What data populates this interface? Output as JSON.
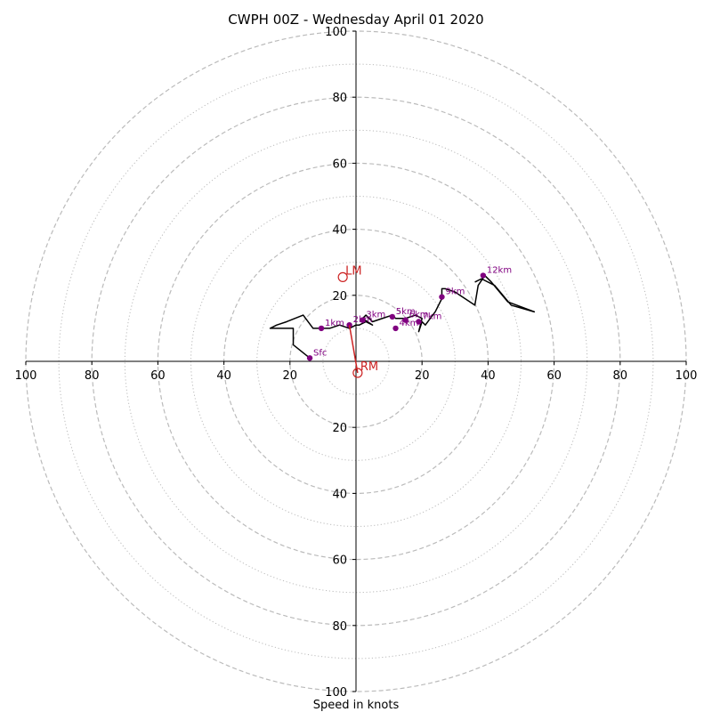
{
  "chart_data": {
    "type": "hodograph",
    "title": "CWPH 00Z - Wednesday April 01 2020",
    "xlabel": "Speed in knots",
    "ylabel": "",
    "xlim": [
      -100,
      100
    ],
    "ylim": [
      -100,
      100
    ],
    "rings": {
      "dashed": [
        20,
        40,
        60,
        80,
        100
      ],
      "dotted": [
        10,
        30,
        50,
        70,
        90
      ]
    },
    "x_tick_labels": [
      {
        "value": -100,
        "label": "100"
      },
      {
        "value": -80,
        "label": "80"
      },
      {
        "value": -60,
        "label": "60"
      },
      {
        "value": -40,
        "label": "40"
      },
      {
        "value": -20,
        "label": "20"
      },
      {
        "value": 20,
        "label": "20"
      },
      {
        "value": 40,
        "label": "40"
      },
      {
        "value": 60,
        "label": "60"
      },
      {
        "value": 80,
        "label": "80"
      },
      {
        "value": 100,
        "label": "100"
      }
    ],
    "y_tick_labels": [
      {
        "value": 100,
        "label": "100"
      },
      {
        "value": 80,
        "label": "80"
      },
      {
        "value": 60,
        "label": "60"
      },
      {
        "value": 40,
        "label": "40"
      },
      {
        "value": 20,
        "label": "20"
      },
      {
        "value": -20,
        "label": "20"
      },
      {
        "value": -40,
        "label": "40"
      },
      {
        "value": -60,
        "label": "60"
      },
      {
        "value": -80,
        "label": "80"
      },
      {
        "value": -100,
        "label": "100"
      }
    ],
    "trace": {
      "u": [
        -14,
        -19,
        -19,
        -23,
        -26,
        -24,
        -21,
        -16,
        -13,
        -10,
        -8,
        -5,
        -2,
        0,
        1,
        3,
        5,
        2,
        3,
        5,
        8,
        11,
        12,
        15,
        18,
        20,
        19,
        20,
        21,
        24,
        26,
        26,
        27,
        30,
        33,
        36,
        37,
        39,
        41,
        46,
        54,
        47,
        42,
        38,
        36
      ],
      "v": [
        1,
        5,
        10,
        10,
        10,
        11,
        12,
        14,
        10,
        10,
        10,
        11,
        10,
        11,
        11,
        12,
        11,
        13,
        14,
        12,
        13,
        14,
        13,
        13,
        14,
        13,
        9,
        12,
        11,
        15,
        19,
        22,
        22,
        21,
        19,
        17,
        23,
        26,
        24,
        18,
        15,
        17,
        23,
        25,
        24
      ]
    },
    "height_markers": [
      {
        "label": "Sfc",
        "u": -14,
        "v": 1
      },
      {
        "label": "1km",
        "u": -10.5,
        "v": 10
      },
      {
        "label": "2km",
        "u": -2,
        "v": 11
      },
      {
        "label": "3km",
        "u": 2,
        "v": 12.5
      },
      {
        "label": "4km",
        "u": 12,
        "v": 10
      },
      {
        "label": "5km",
        "u": 11,
        "v": 13.5
      },
      {
        "label": "6km",
        "u": 15,
        "v": 12.5
      },
      {
        "label": "7km",
        "u": 19,
        "v": 12
      },
      {
        "label": "9km",
        "u": 26,
        "v": 19.5
      },
      {
        "label": "12km",
        "u": 38.5,
        "v": 26
      }
    ],
    "storm_motion": [
      {
        "label": "LM",
        "u": -4,
        "v": 25.5
      },
      {
        "label": "RM",
        "u": 0.5,
        "v": -3.5
      }
    ],
    "colors": {
      "trace": "#000000",
      "marker": "#800080",
      "storm_motion": "#cc2222",
      "ring": "#bbbbbb",
      "axis": "#000000"
    }
  }
}
